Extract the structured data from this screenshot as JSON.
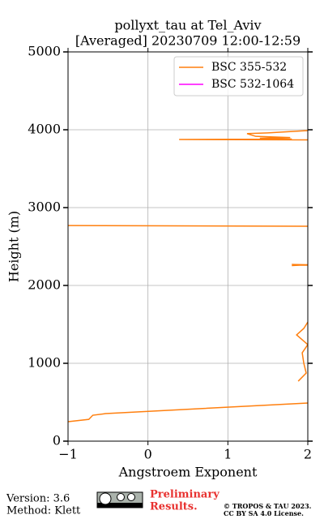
{
  "chart_data": {
    "type": "line",
    "title": [
      "pollyxt_tau at Tel_Aviv",
      "[Averaged] 20230709 12:00-12:59"
    ],
    "xlabel": "Angstroem Exponent",
    "ylabel": "Height (m)",
    "xlim": [
      -1,
      2
    ],
    "xticks": [
      {
        "value": -1,
        "label": "−1"
      },
      0,
      1,
      2
    ],
    "ylim": [
      0,
      5000
    ],
    "yticks": [
      0,
      1000,
      2000,
      3000,
      4000,
      5000
    ],
    "grid": true,
    "legend": "upper right",
    "series": [
      {
        "name": "BSC 355-532",
        "color": "#ff7f0e",
        "x": [
          -1,
          -0.74,
          -0.69,
          -0.53,
          2.0,
          null,
          1.88,
          1.98,
          1.95,
          1.93,
          2.0,
          1.86,
          1.95,
          2.0,
          null,
          1.8,
          2.0,
          1.8,
          2.0,
          null,
          -1,
          2.0,
          null,
          2.0,
          0.39,
          1.8,
          1.4,
          1.78,
          1.35,
          1.24,
          1.5,
          2.0
        ],
        "y": [
          250,
          280,
          333,
          354,
          490,
          null,
          770,
          875,
          1000,
          1135,
          1240,
          1365,
          1448,
          1530,
          null,
          2255,
          2265,
          2270,
          2260,
          null,
          2770,
          2760,
          null,
          3870,
          3875,
          3880,
          3890,
          3900,
          3915,
          3950,
          3960,
          3990
        ]
      },
      {
        "name": "BSC 532-1064",
        "color": "#ff00ff",
        "x": [],
        "y": []
      }
    ]
  },
  "footer": {
    "version": "Version: 3.6",
    "method": "Method: Klett",
    "preliminary": [
      "Preliminary",
      "Results."
    ],
    "copyright": [
      "© TROPOS & TAU 2023.",
      "CC BY SA 4.0 License."
    ]
  }
}
